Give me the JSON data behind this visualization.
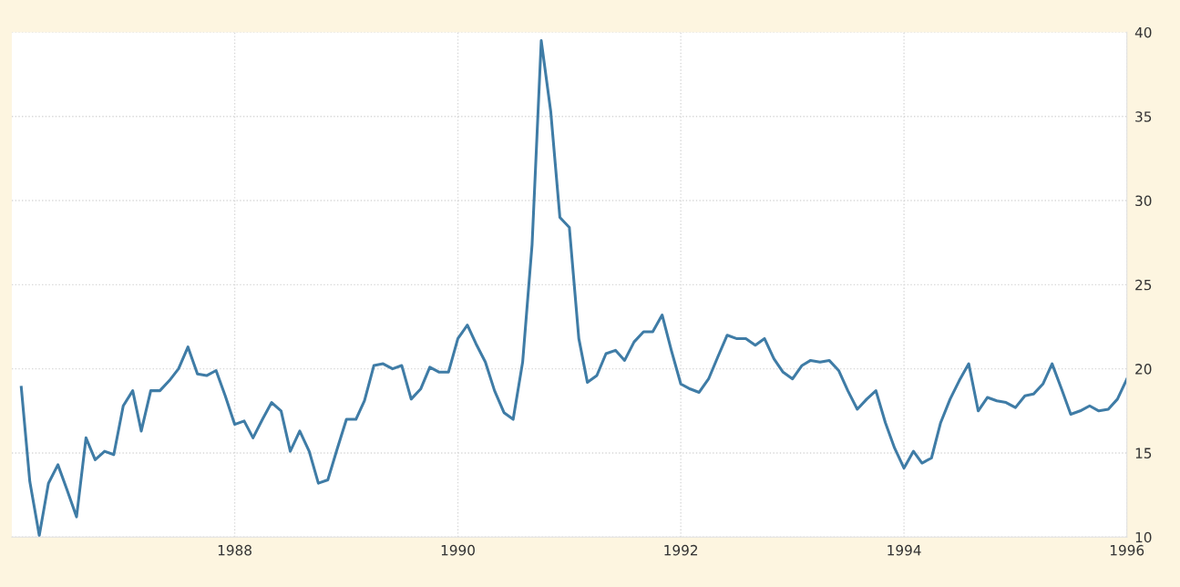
{
  "chart_data": {
    "type": "line",
    "x": [
      "1986-02",
      "1986-03",
      "1986-04",
      "1986-05",
      "1986-06",
      "1986-07",
      "1986-08",
      "1986-09",
      "1986-10",
      "1986-11",
      "1986-12",
      "1987-01",
      "1987-02",
      "1987-03",
      "1987-04",
      "1987-05",
      "1987-06",
      "1987-07",
      "1987-08",
      "1987-09",
      "1987-10",
      "1987-11",
      "1987-12",
      "1988-01",
      "1988-02",
      "1988-03",
      "1988-04",
      "1988-05",
      "1988-06",
      "1988-07",
      "1988-08",
      "1988-09",
      "1988-10",
      "1988-11",
      "1988-12",
      "1989-01",
      "1989-02",
      "1989-03",
      "1989-04",
      "1989-05",
      "1989-06",
      "1989-07",
      "1989-08",
      "1989-09",
      "1989-10",
      "1989-11",
      "1989-12",
      "1990-01",
      "1990-02",
      "1990-03",
      "1990-04",
      "1990-05",
      "1990-06",
      "1990-07",
      "1990-08",
      "1990-09",
      "1990-10",
      "1990-11",
      "1990-12",
      "1991-01",
      "1991-02",
      "1991-03",
      "1991-04",
      "1991-05",
      "1991-06",
      "1991-07",
      "1991-08",
      "1991-09",
      "1991-10",
      "1991-11",
      "1991-12",
      "1992-01",
      "1992-02",
      "1992-03",
      "1992-04",
      "1992-05",
      "1992-06",
      "1992-07",
      "1992-08",
      "1992-09",
      "1992-10",
      "1992-11",
      "1992-12",
      "1993-01",
      "1993-02",
      "1993-03",
      "1993-04",
      "1993-05",
      "1993-06",
      "1993-07",
      "1993-08",
      "1993-09",
      "1993-10",
      "1993-11",
      "1993-12",
      "1994-01",
      "1994-02",
      "1994-03",
      "1994-04",
      "1994-05",
      "1994-06",
      "1994-07",
      "1994-08",
      "1994-09",
      "1994-10",
      "1994-11",
      "1994-12",
      "1995-01",
      "1995-02",
      "1995-03",
      "1995-04",
      "1995-05",
      "1995-06",
      "1995-07",
      "1995-08",
      "1995-09",
      "1995-10",
      "1995-11",
      "1995-12",
      "1996-01"
    ],
    "series": [
      {
        "color": "#3f7ca6",
        "values": [
          18.9,
          13.3,
          10.1,
          13.2,
          14.3,
          12.8,
          11.2,
          15.9,
          14.6,
          15.1,
          14.9,
          17.8,
          18.7,
          16.3,
          18.7,
          18.7,
          19.3,
          20.0,
          21.3,
          19.7,
          19.6,
          19.9,
          18.4,
          16.7,
          16.9,
          15.9,
          17.0,
          18.0,
          17.5,
          15.1,
          16.3,
          15.1,
          13.2,
          13.4,
          15.2,
          17.0,
          17.0,
          18.1,
          20.2,
          20.3,
          20.0,
          20.2,
          18.2,
          18.8,
          20.1,
          19.8,
          19.8,
          21.8,
          22.6,
          21.5,
          20.4,
          18.7,
          17.4,
          17.0,
          20.4,
          27.4,
          39.5,
          35.3,
          29.0,
          28.4,
          21.8,
          19.2,
          19.6,
          20.9,
          21.1,
          20.5,
          21.6,
          22.2,
          22.2,
          23.2,
          21.1,
          19.1,
          18.8,
          18.6,
          19.4,
          20.7,
          22.0,
          21.8,
          21.8,
          21.4,
          21.8,
          20.6,
          19.8,
          19.4,
          20.2,
          20.5,
          20.4,
          20.5,
          19.9,
          18.7,
          17.6,
          18.2,
          18.7,
          16.8,
          15.3,
          14.1,
          15.1,
          14.4,
          14.7,
          16.8,
          18.2,
          19.3,
          20.3,
          17.5,
          18.3,
          18.1,
          18.0,
          17.7,
          18.4,
          18.5,
          19.1,
          20.3,
          18.8,
          17.3,
          17.5,
          17.8,
          17.5,
          17.6,
          18.2,
          19.4
        ]
      }
    ],
    "xlim": [
      "1986-01",
      "1996-01"
    ],
    "xticks": [
      {
        "value": "1988-01",
        "label": "1988"
      },
      {
        "value": "1990-01",
        "label": "1990"
      },
      {
        "value": "1992-01",
        "label": "1992"
      },
      {
        "value": "1994-01",
        "label": "1994"
      },
      {
        "value": "1996-01",
        "label": "1996"
      }
    ],
    "ylim": [
      10,
      40
    ],
    "yticks": [
      10,
      15,
      20,
      25,
      30,
      35,
      40
    ],
    "grid": true,
    "marker": "none",
    "line_style": "solid"
  }
}
